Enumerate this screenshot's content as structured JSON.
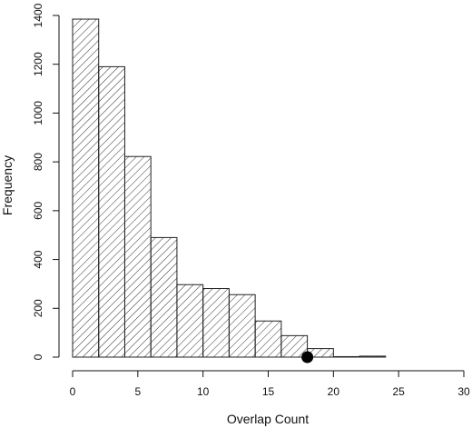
{
  "chart_data": {
    "type": "bar",
    "title": "",
    "xlabel": "Overlap Count",
    "ylabel": "Frequency",
    "xlim": [
      0,
      30
    ],
    "ylim": [
      0,
      1400
    ],
    "xticks": [
      0,
      5,
      10,
      15,
      20,
      25,
      30
    ],
    "yticks": [
      0,
      200,
      400,
      600,
      800,
      1000,
      1200,
      1400
    ],
    "bins": [
      {
        "start": 0,
        "end": 2,
        "value": 1385
      },
      {
        "start": 2,
        "end": 4,
        "value": 1190
      },
      {
        "start": 4,
        "end": 6,
        "value": 822
      },
      {
        "start": 6,
        "end": 8,
        "value": 490
      },
      {
        "start": 8,
        "end": 10,
        "value": 297
      },
      {
        "start": 10,
        "end": 12,
        "value": 281
      },
      {
        "start": 12,
        "end": 14,
        "value": 256
      },
      {
        "start": 14,
        "end": 16,
        "value": 148
      },
      {
        "start": 16,
        "end": 18,
        "value": 88
      },
      {
        "start": 18,
        "end": 20,
        "value": 35
      },
      {
        "start": 20,
        "end": 22,
        "value": 2
      },
      {
        "start": 22,
        "end": 24,
        "value": 4
      }
    ],
    "marker": {
      "x": 18,
      "y": 0
    },
    "fill_pattern": "diagonal-hatch",
    "grid": false,
    "bar_color": "#222222",
    "marker_color": "#000000"
  }
}
